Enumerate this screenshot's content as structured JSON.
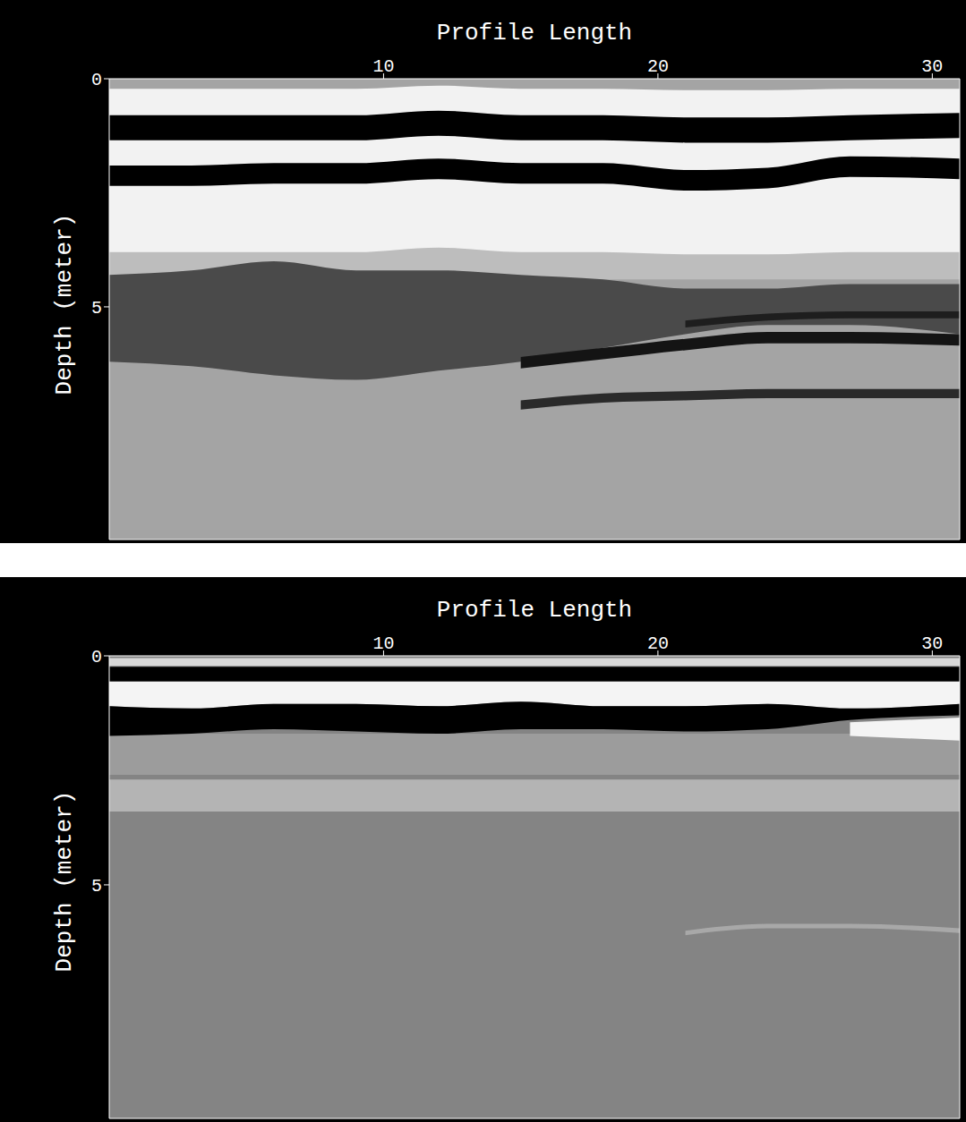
{
  "chart_data": [
    {
      "type": "area",
      "x_label": "Profile Length",
      "y_label": "Depth (meter)",
      "color": "#a4a4a4",
      "x": [
        0,
        3,
        6,
        9,
        12,
        15,
        18,
        21,
        24,
        27,
        31
      ],
      "xlim": [
        0,
        31
      ],
      "xticks": [
        10,
        20,
        30
      ],
      "ylim": [
        0,
        10.1
      ],
      "yticks": [
        0,
        5
      ],
      "series": [
        {
          "color": "#bdbdbd",
          "values": [
            [
              3.6,
              4.4
            ],
            [
              3.6,
              4.4
            ],
            [
              3.6,
              4.4
            ],
            [
              3.6,
              4.4
            ],
            [
              3.5,
              4.4
            ],
            [
              3.6,
              4.4
            ],
            [
              3.6,
              4.4
            ],
            [
              3.6,
              4.4
            ],
            [
              3.6,
              4.4
            ],
            [
              3.6,
              4.4
            ],
            [
              3.6,
              4.4
            ]
          ]
        },
        {
          "color": "#f2f2f2",
          "values": [
            [
              0.22,
              3.8
            ],
            [
              0.22,
              3.8
            ],
            [
              0.22,
              3.8
            ],
            [
              0.22,
              3.8
            ],
            [
              0.15,
              3.7
            ],
            [
              0.22,
              3.8
            ],
            [
              0.22,
              3.8
            ],
            [
              0.25,
              3.85
            ],
            [
              0.25,
              3.85
            ],
            [
              0.22,
              3.8
            ],
            [
              0.22,
              3.8
            ]
          ]
        },
        {
          "color": "#000000",
          "values": [
            [
              0.8,
              1.35
            ],
            [
              0.8,
              1.35
            ],
            [
              0.8,
              1.35
            ],
            [
              0.8,
              1.35
            ],
            [
              0.7,
              1.25
            ],
            [
              0.8,
              1.35
            ],
            [
              0.8,
              1.35
            ],
            [
              0.85,
              1.4
            ],
            [
              0.85,
              1.4
            ],
            [
              0.8,
              1.35
            ],
            [
              0.75,
              1.3
            ]
          ]
        },
        {
          "color": "#000000",
          "values": [
            [
              1.9,
              2.35
            ],
            [
              1.9,
              2.35
            ],
            [
              1.85,
              2.3
            ],
            [
              1.85,
              2.3
            ],
            [
              1.75,
              2.2
            ],
            [
              1.85,
              2.3
            ],
            [
              1.85,
              2.3
            ],
            [
              2.0,
              2.45
            ],
            [
              1.95,
              2.4
            ],
            [
              1.7,
              2.15
            ],
            [
              1.75,
              2.2
            ]
          ]
        },
        {
          "color": "#4a4a4a",
          "values": [
            [
              4.3,
              6.2
            ],
            [
              4.2,
              6.3
            ],
            [
              4.0,
              6.5
            ],
            [
              4.2,
              6.6
            ],
            [
              4.2,
              6.4
            ],
            [
              4.3,
              6.2
            ],
            [
              4.4,
              5.9
            ],
            [
              4.6,
              5.6
            ],
            [
              4.6,
              5.4
            ],
            [
              4.5,
              5.4
            ],
            [
              4.5,
              5.6
            ]
          ]
        },
        {
          "color": "#141414",
          "values": [
            null,
            null,
            null,
            null,
            null,
            [
              6.1,
              6.35
            ],
            [
              5.9,
              6.15
            ],
            [
              5.7,
              5.95
            ],
            [
              5.55,
              5.8
            ],
            [
              5.55,
              5.8
            ],
            [
              5.6,
              5.85
            ]
          ]
        },
        {
          "color": "#1e1e1e",
          "values": [
            null,
            null,
            null,
            null,
            null,
            null,
            null,
            [
              5.3,
              5.45
            ],
            [
              5.15,
              5.3
            ],
            [
              5.1,
              5.25
            ],
            [
              5.1,
              5.25
            ]
          ]
        },
        {
          "color": "#2a2a2a",
          "values": [
            null,
            null,
            null,
            null,
            null,
            [
              7.05,
              7.25
            ],
            [
              6.9,
              7.1
            ],
            [
              6.85,
              7.05
            ],
            [
              6.8,
              7.0
            ],
            [
              6.8,
              7.0
            ],
            [
              6.8,
              7.0
            ]
          ]
        }
      ]
    },
    {
      "type": "area",
      "x_label": "Profile Length",
      "y_label": "Depth (meter)",
      "color": "#848484",
      "x": [
        0,
        3,
        6,
        9,
        12,
        15,
        18,
        21,
        24,
        27,
        31
      ],
      "xlim": [
        0,
        31
      ],
      "xticks": [
        10,
        20,
        30
      ],
      "ylim": [
        0,
        10.1
      ],
      "yticks": [
        0,
        5
      ],
      "series": [
        {
          "color": "#9c9c9c",
          "values": [
            [
              1.7,
              2.6
            ],
            [
              1.7,
              2.6
            ],
            [
              1.7,
              2.6
            ],
            [
              1.7,
              2.6
            ],
            [
              1.7,
              2.6
            ],
            [
              1.7,
              2.6
            ],
            [
              1.7,
              2.6
            ],
            [
              1.7,
              2.6
            ],
            [
              1.7,
              2.6
            ],
            [
              1.7,
              2.6
            ],
            [
              1.7,
              2.6
            ]
          ]
        },
        {
          "color": "#b4b4b4",
          "values": [
            [
              2.7,
              3.4
            ],
            [
              2.7,
              3.4
            ],
            [
              2.7,
              3.4
            ],
            [
              2.7,
              3.4
            ],
            [
              2.7,
              3.4
            ],
            [
              2.7,
              3.4
            ],
            [
              2.7,
              3.4
            ],
            [
              2.7,
              3.4
            ],
            [
              2.7,
              3.4
            ],
            [
              2.7,
              3.4
            ],
            [
              2.7,
              3.4
            ]
          ]
        },
        {
          "color": "#d8d8d8",
          "values": [
            [
              0.05,
              0.22
            ],
            [
              0.05,
              0.22
            ],
            [
              0.05,
              0.22
            ],
            [
              0.05,
              0.22
            ],
            [
              0.05,
              0.22
            ],
            [
              0.05,
              0.22
            ],
            [
              0.05,
              0.22
            ],
            [
              0.05,
              0.22
            ],
            [
              0.05,
              0.22
            ],
            [
              0.05,
              0.22
            ],
            [
              0.05,
              0.22
            ]
          ]
        },
        {
          "color": "#000000",
          "values": [
            [
              0.24,
              0.56
            ],
            [
              0.24,
              0.56
            ],
            [
              0.24,
              0.56
            ],
            [
              0.24,
              0.56
            ],
            [
              0.24,
              0.56
            ],
            [
              0.24,
              0.56
            ],
            [
              0.24,
              0.56
            ],
            [
              0.24,
              0.56
            ],
            [
              0.24,
              0.56
            ],
            [
              0.24,
              0.56
            ],
            [
              0.24,
              0.56
            ]
          ]
        },
        {
          "color": "#f4f4f4",
          "values": [
            [
              0.56,
              1.1
            ],
            [
              0.56,
              1.15
            ],
            [
              0.56,
              1.05
            ],
            [
              0.56,
              1.05
            ],
            [
              0.56,
              1.1
            ],
            [
              0.56,
              1.0
            ],
            [
              0.56,
              1.1
            ],
            [
              0.56,
              1.1
            ],
            [
              0.56,
              1.05
            ],
            [
              0.56,
              1.15
            ],
            [
              0.56,
              1.05
            ]
          ]
        },
        {
          "color": "#000000",
          "values": [
            [
              1.1,
              1.75
            ],
            [
              1.15,
              1.7
            ],
            [
              1.05,
              1.6
            ],
            [
              1.05,
              1.65
            ],
            [
              1.1,
              1.7
            ],
            [
              1.0,
              1.6
            ],
            [
              1.1,
              1.6
            ],
            [
              1.1,
              1.65
            ],
            [
              1.05,
              1.6
            ],
            [
              1.15,
              1.4
            ],
            [
              1.05,
              1.3
            ]
          ]
        },
        {
          "color": "#f4f4f4",
          "values": [
            null,
            null,
            null,
            null,
            null,
            null,
            null,
            null,
            null,
            [
              1.45,
              1.75
            ],
            [
              1.35,
              1.85
            ]
          ]
        },
        {
          "color": "#a8a8a8",
          "values": [
            null,
            null,
            null,
            null,
            null,
            null,
            null,
            [
              6.0,
              6.1
            ],
            [
              5.85,
              5.95
            ],
            [
              5.85,
              5.95
            ],
            [
              5.95,
              6.05
            ]
          ]
        }
      ]
    }
  ]
}
